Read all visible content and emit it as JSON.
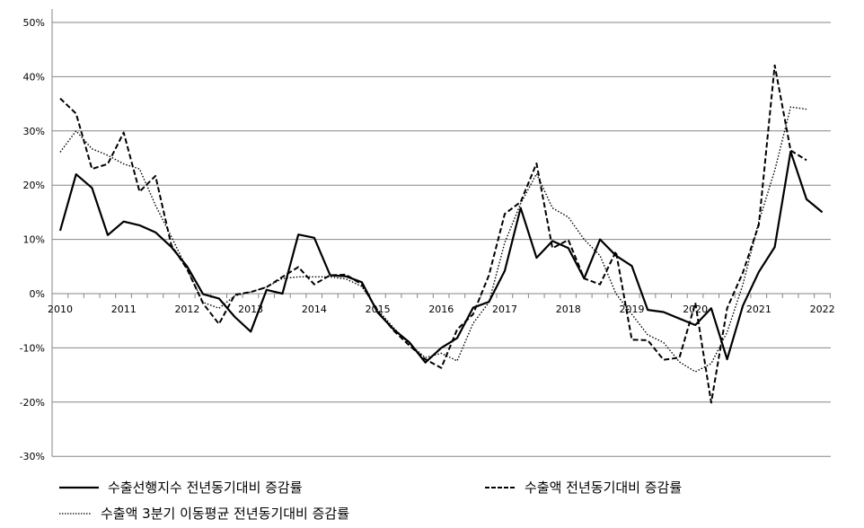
{
  "chart_data": {
    "type": "line",
    "title": "",
    "xlabel": "",
    "ylabel": "",
    "ylim": [
      -30,
      50
    ],
    "y_ticks": [
      "50%",
      "40%",
      "30%",
      "20%",
      "10%",
      "0%",
      "-10%",
      "-20%",
      "-30%"
    ],
    "x_tick_labels": [
      "2010",
      "2011",
      "2012",
      "2013",
      "2014",
      "2015",
      "2016",
      "2017",
      "2018",
      "2019",
      "2020",
      "2021",
      "2022"
    ],
    "x_frequency": "quarterly",
    "grid": "horizontal",
    "legend_placement": "bottom",
    "series": [
      {
        "name": "수출선행지수 전년동기대비 증감률",
        "style": "solid",
        "color": "#000000",
        "values": [
          11.6,
          22,
          19.5,
          10.8,
          13.3,
          12.6,
          11.3,
          8.6,
          5,
          -0.1,
          -0.9,
          -4.3,
          -7,
          0.7,
          0,
          10.9,
          10.3,
          3.4,
          3.2,
          2.1,
          -3.5,
          -6.6,
          -9,
          -12.7,
          -10,
          -8.2,
          -2.6,
          -1.5,
          4.2,
          15.8,
          6.6,
          9.7,
          8.4,
          2.8,
          10,
          7,
          5.1,
          -3,
          -3.4,
          -4.6,
          -5.8,
          -2.7,
          -12.1,
          -2.2,
          4,
          8.6,
          26.2,
          17.4,
          15
        ]
      },
      {
        "name": "수출액 전년동기대비 증감률",
        "style": "dashed",
        "color": "#000000",
        "values": [
          36,
          33.2,
          23,
          23.9,
          29.7,
          18.8,
          21.7,
          8.9,
          4.5,
          -1.8,
          -5.6,
          -0.2,
          0.3,
          1.2,
          3.1,
          4.9,
          1.7,
          3.4,
          3.5,
          1.7,
          -3.3,
          -6.8,
          -9.6,
          -12.1,
          -13.7,
          -6.6,
          -3.8,
          3.4,
          14.7,
          16.9,
          24,
          8.4,
          9.9,
          2.8,
          1.7,
          7.8,
          -8.5,
          -8.6,
          -12.2,
          -11.8,
          -1.7,
          -20.1,
          -2.7,
          3.9,
          12.7,
          42.1,
          26.4,
          24.6
        ]
      },
      {
        "name": "수출액 3분기 이동평균 전년동기대비 증감률",
        "style": "dotted",
        "color": "#000000",
        "values": [
          26.1,
          30,
          26.7,
          25.5,
          23.9,
          23,
          16.3,
          10.5,
          4.5,
          -1.6,
          -2.7,
          -0.4,
          0.3,
          1.2,
          2.8,
          3.1,
          3.1,
          3.1,
          2.7,
          1.3,
          -3,
          -6.3,
          -9.3,
          -11.8,
          -11,
          -12.4,
          -5.5,
          -1.6,
          9.4,
          16.6,
          22.1,
          15.8,
          14.1,
          10,
          7,
          0,
          -3.8,
          -7.6,
          -9,
          -12.6,
          -14.4,
          -12.9,
          -7.1,
          1.7,
          13.3,
          22.7,
          34.4,
          34
        ]
      }
    ]
  },
  "colors": {
    "grid": "#868686",
    "axis": "#868686",
    "line": "#000000"
  }
}
